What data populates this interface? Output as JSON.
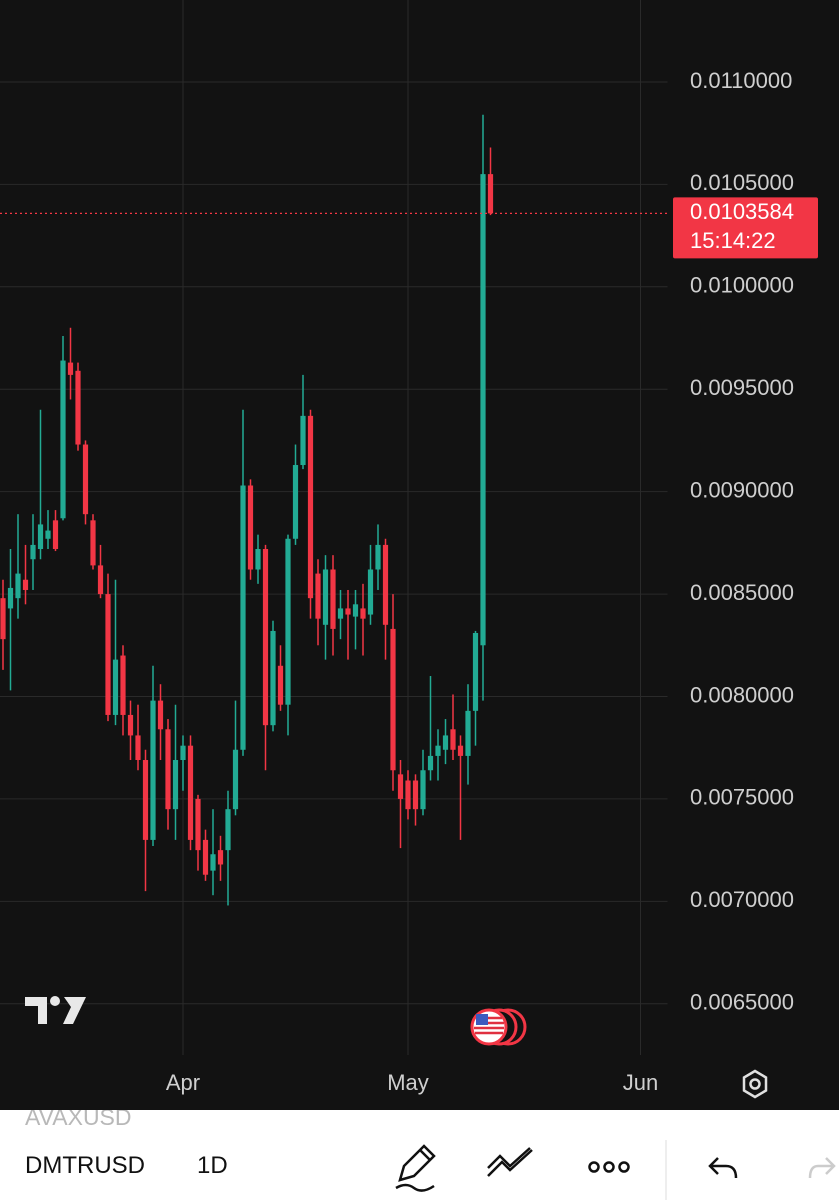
{
  "chart_data": {
    "type": "candlestick",
    "categories": [
      null,
      null,
      null,
      null,
      null,
      null,
      null,
      null,
      null,
      null,
      null,
      null,
      null,
      null,
      null,
      null,
      null,
      null,
      null,
      null,
      null,
      null,
      null,
      null,
      "Apr",
      null,
      null,
      null,
      null,
      null,
      null,
      null,
      null,
      null,
      null,
      null,
      null,
      null,
      null,
      null,
      null,
      null,
      null,
      null,
      null,
      null,
      null,
      null,
      null,
      null,
      null,
      null,
      null,
      null,
      "May",
      null,
      null,
      null,
      null,
      null,
      null,
      null,
      null,
      null,
      null,
      null,
      null,
      null,
      null,
      null,
      null,
      null,
      null,
      null,
      null,
      null,
      null,
      null,
      null,
      null,
      null,
      null,
      null,
      null,
      null,
      "Jun",
      null,
      null,
      null
    ],
    "open": [
      0.00848,
      0.00843,
      0.00848,
      0.00857,
      0.00867,
      0.00872,
      0.00877,
      0.00886,
      0.00887,
      0.00963,
      0.00959,
      0.00923,
      0.00886,
      0.00864,
      0.0085,
      0.00791,
      0.0082,
      0.00791,
      0.00781,
      0.00769,
      0.0073,
      0.00798,
      0.00784,
      0.00745,
      0.00769,
      0.00776,
      0.0075,
      0.0073,
      0.00715,
      0.00725,
      0.00725,
      0.00745,
      0.00774,
      0.00903,
      0.00862,
      0.00872,
      0.00786,
      0.00815,
      0.00796,
      0.00877,
      0.00913,
      0.00937,
      0.0086,
      0.00835,
      0.00862,
      0.00838,
      0.00843,
      0.00839,
      0.00843,
      0.0084,
      0.00862,
      0.00874,
      0.00833,
      0.00762,
      0.00759,
      0.00759,
      0.00745,
      0.00764,
      0.00771,
      0.00774,
      0.00784,
      0.00776,
      0.00771,
      0.00793,
      0.00825,
      0.01055,
      null,
      null,
      null,
      null,
      null,
      null,
      null,
      null,
      null,
      null,
      null,
      null,
      null,
      null,
      null,
      null,
      null,
      null,
      null,
      null,
      null,
      null,
      null
    ],
    "high": [
      0.00857,
      0.00872,
      0.00889,
      0.00874,
      0.00889,
      0.0094,
      0.00891,
      0.00891,
      0.00976,
      0.0098,
      0.00963,
      0.00925,
      0.00889,
      0.00874,
      0.0086,
      0.00857,
      0.00825,
      0.00798,
      0.00796,
      0.00774,
      0.00815,
      0.00806,
      0.00789,
      0.00796,
      0.00781,
      0.00781,
      0.00752,
      0.00735,
      0.00745,
      0.00732,
      0.00754,
      0.00798,
      0.0094,
      0.00906,
      0.00879,
      0.00874,
      0.00837,
      0.00825,
      0.00879,
      0.00923,
      0.00957,
      0.0094,
      0.00867,
      0.00869,
      0.00869,
      0.00852,
      0.00852,
      0.00852,
      0.00855,
      0.00874,
      0.00884,
      0.00877,
      0.0085,
      0.00769,
      0.00764,
      0.00762,
      0.00774,
      0.0081,
      0.00784,
      0.00789,
      0.00801,
      0.00781,
      0.00806,
      0.00832,
      0.01084,
      0.01068,
      null,
      null,
      null,
      null,
      null,
      null,
      null,
      null,
      null,
      null,
      null,
      null,
      null,
      null,
      null,
      null,
      null,
      null,
      null,
      null,
      null,
      null,
      null
    ],
    "low": [
      0.00813,
      0.00803,
      0.00838,
      0.00845,
      0.00852,
      0.00867,
      0.00872,
      0.00871,
      0.00886,
      0.00945,
      0.0092,
      0.00884,
      0.00862,
      0.00848,
      0.00788,
      0.00786,
      0.00781,
      0.00769,
      0.00764,
      0.00705,
      0.00727,
      0.00769,
      0.00735,
      0.0073,
      0.00754,
      0.00725,
      0.00715,
      0.0071,
      0.00703,
      0.0071,
      0.00698,
      0.00742,
      0.00771,
      0.00857,
      0.00855,
      0.00764,
      0.00783,
      0.00793,
      0.00781,
      0.00874,
      0.00911,
      0.00838,
      0.00825,
      0.00818,
      0.0082,
      0.00828,
      0.00818,
      0.00823,
      0.0082,
      0.00835,
      0.00852,
      0.00818,
      0.00754,
      0.00726,
      0.0074,
      0.00737,
      0.00742,
      0.00759,
      0.00759,
      0.00767,
      0.00769,
      0.0073,
      0.00757,
      0.00776,
      0.00798,
      0.01035,
      null,
      null,
      null,
      null,
      null,
      null,
      null,
      null,
      null,
      null,
      null,
      null,
      null,
      null,
      null,
      null,
      null,
      null,
      null,
      null,
      null,
      null,
      null
    ],
    "close": [
      0.00828,
      0.00853,
      0.0086,
      0.00852,
      0.00874,
      0.00884,
      0.00881,
      0.00872,
      0.00964,
      0.00957,
      0.00923,
      0.00889,
      0.00864,
      0.0085,
      0.00791,
      0.00818,
      0.00791,
      0.00781,
      0.00769,
      0.0073,
      0.00798,
      0.00784,
      0.00745,
      0.00769,
      0.00776,
      0.0073,
      0.00725,
      0.00713,
      0.00723,
      0.00718,
      0.00745,
      0.00774,
      0.00903,
      0.00862,
      0.00872,
      0.00786,
      0.00832,
      0.00796,
      0.00877,
      0.00913,
      0.00937,
      0.00848,
      0.00838,
      0.00862,
      0.00833,
      0.00843,
      0.0084,
      0.00845,
      0.00838,
      0.00862,
      0.00874,
      0.00835,
      0.00764,
      0.0075,
      0.00745,
      0.00745,
      0.00764,
      0.00771,
      0.00776,
      0.00781,
      0.00774,
      0.00771,
      0.00793,
      0.00831,
      0.01055,
      0.0103584,
      null,
      null,
      null,
      null,
      null,
      null,
      null,
      null,
      null,
      null,
      null,
      null,
      null,
      null,
      null,
      null,
      null,
      null,
      null,
      null,
      null,
      null,
      null
    ],
    "up_color": "#22ab94",
    "down_color": "#f23645",
    "countdown": "15:14:22",
    "ylim": [
      0.00625,
      0.0114
    ],
    "yticks": [
      {
        "value": 0.0065,
        "label": "0.0065000"
      },
      {
        "value": 0.007,
        "label": "0.0070000"
      },
      {
        "value": 0.0075,
        "label": "0.0075000"
      },
      {
        "value": 0.008,
        "label": "0.0080000"
      },
      {
        "value": 0.0085,
        "label": "0.0085000"
      },
      {
        "value": 0.009,
        "label": "0.0090000"
      },
      {
        "value": 0.0095,
        "label": "0.0095000"
      },
      {
        "value": 0.01,
        "label": "0.0100000"
      },
      {
        "value": 0.0105,
        "label": "0.0105000"
      },
      {
        "value": 0.011,
        "label": "0.0110000"
      }
    ],
    "grid": true
  },
  "toolbar": {
    "previous_symbol": "AVAXUSD",
    "symbol": "DMTRUSD",
    "interval": "1D"
  }
}
